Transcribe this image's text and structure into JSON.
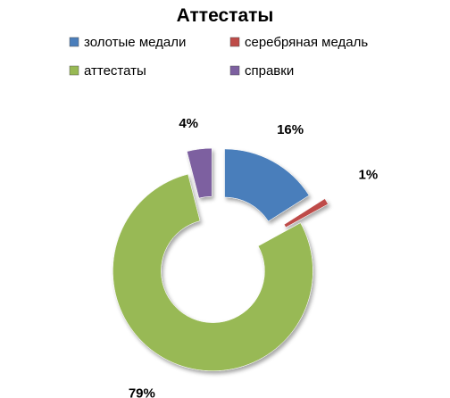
{
  "chart_data": {
    "type": "pie",
    "variant": "exploded-doughnut",
    "title": "Аттестаты",
    "legend_position": "top",
    "series": [
      {
        "name": "золотые медали",
        "value": 16,
        "label": "16%",
        "color": "#4a7ebb"
      },
      {
        "name": "серебряная медаль",
        "value": 1,
        "label": "1%",
        "color": "#be4b48"
      },
      {
        "name": "аттестаты",
        "value": 79,
        "label": "79%",
        "color": "#98b954"
      },
      {
        "name": "справки",
        "value": 4,
        "label": "4%",
        "color": "#7d60a0"
      }
    ]
  }
}
